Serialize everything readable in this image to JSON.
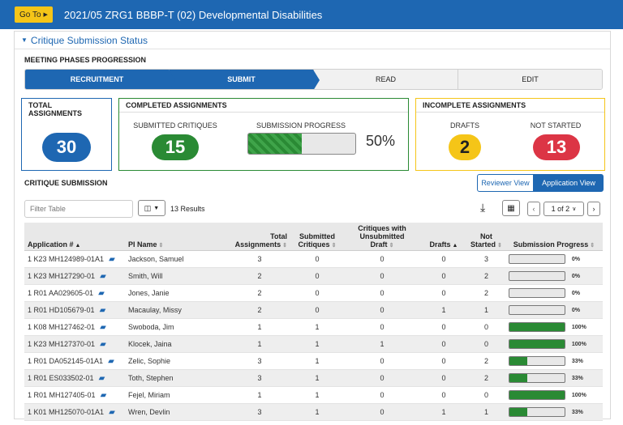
{
  "topbar": {
    "goto_label": "Go To",
    "title": "2021/05 ZRG1 BBBP-T (02) Developmental Disabilities"
  },
  "panel": {
    "title": "Critique Submission Status"
  },
  "phases": {
    "label": "MEETING PHASES PROGRESSION",
    "items": [
      {
        "label": "RECRUITMENT",
        "state": "done"
      },
      {
        "label": "SUBMIT",
        "state": "done"
      },
      {
        "label": "READ",
        "state": "todo"
      },
      {
        "label": "EDIT",
        "state": "todo"
      }
    ]
  },
  "total": {
    "header": "TOTAL ASSIGNMENTS",
    "value": "30"
  },
  "completed": {
    "header": "COMPLETED ASSIGNMENTS",
    "submitted_label": "SUBMITTED CRITIQUES",
    "submitted_value": "15",
    "progress_label": "SUBMISSION PROGRESS",
    "progress_fraction": 0.5,
    "progress_text": "50%"
  },
  "incomplete": {
    "header": "INCOMPLETE ASSIGNMENTS",
    "drafts_label": "DRAFTS",
    "drafts_value": "2",
    "notstarted_label": "NOT STARTED",
    "notstarted_value": "13"
  },
  "critique": {
    "label": "CRITIQUE SUBMISSION",
    "reviewer_view": "Reviewer View",
    "application_view": "Application View"
  },
  "toolbar": {
    "filter_placeholder": "Filter Table",
    "results": "13 Results",
    "pagination": "1 of 2"
  },
  "table": {
    "headers": {
      "application": "Application #",
      "pi_name": "PI Name",
      "total": "Total Assignments",
      "submitted": "Submitted Critiques",
      "unsubmitted": "Critiques with Unsubmitted Draft",
      "drafts": "Drafts",
      "not_started": "Not Started",
      "progress": "Submission Progress"
    },
    "rows": [
      {
        "app": "1 K23 MH124989-01A1",
        "pi": "Jackson, Samuel",
        "total": "3",
        "submitted": "0",
        "unsub": "0",
        "drafts": "0",
        "notstarted": "3",
        "pct": "0%",
        "frac": 0
      },
      {
        "app": "1 K23 MH127290-01",
        "pi": "Smith, Will",
        "total": "2",
        "submitted": "0",
        "unsub": "0",
        "drafts": "0",
        "notstarted": "2",
        "pct": "0%",
        "frac": 0
      },
      {
        "app": "1 R01 AA029605-01",
        "pi": "Jones, Janie",
        "total": "2",
        "submitted": "0",
        "unsub": "0",
        "drafts": "0",
        "notstarted": "2",
        "pct": "0%",
        "frac": 0
      },
      {
        "app": "1 R01 HD105679-01",
        "pi": "Macaulay, Missy",
        "total": "2",
        "submitted": "0",
        "unsub": "0",
        "drafts": "1",
        "notstarted": "1",
        "pct": "0%",
        "frac": 0
      },
      {
        "app": "1 K08 MH127462-01",
        "pi": "Swoboda, Jim",
        "total": "1",
        "submitted": "1",
        "unsub": "0",
        "drafts": "0",
        "notstarted": "0",
        "pct": "100%",
        "frac": 1
      },
      {
        "app": "1 K23 MH127370-01",
        "pi": "Klocek, Jaina",
        "total": "1",
        "submitted": "1",
        "unsub": "1",
        "drafts": "0",
        "notstarted": "0",
        "pct": "100%",
        "frac": 1
      },
      {
        "app": "1 R01 DA052145-01A1",
        "pi": "Zelic, Sophie",
        "total": "3",
        "submitted": "1",
        "unsub": "0",
        "drafts": "0",
        "notstarted": "2",
        "pct": "33%",
        "frac": 0.33
      },
      {
        "app": "1 R01 ES033502-01",
        "pi": "Toth, Stephen",
        "total": "3",
        "submitted": "1",
        "unsub": "0",
        "drafts": "0",
        "notstarted": "2",
        "pct": "33%",
        "frac": 0.33
      },
      {
        "app": "1 R01 MH127405-01",
        "pi": "Fejel, Miriam",
        "total": "1",
        "submitted": "1",
        "unsub": "0",
        "drafts": "0",
        "notstarted": "0",
        "pct": "100%",
        "frac": 1
      },
      {
        "app": "1 K01 MH125070-01A1",
        "pi": "Wren, Devlin",
        "total": "3",
        "submitted": "1",
        "unsub": "0",
        "drafts": "1",
        "notstarted": "1",
        "pct": "33%",
        "frac": 0.33
      }
    ]
  },
  "colors": {
    "primary": "#1e67b2",
    "green": "#2a8a34",
    "yellow": "#f5c518",
    "red": "#dc3545"
  }
}
